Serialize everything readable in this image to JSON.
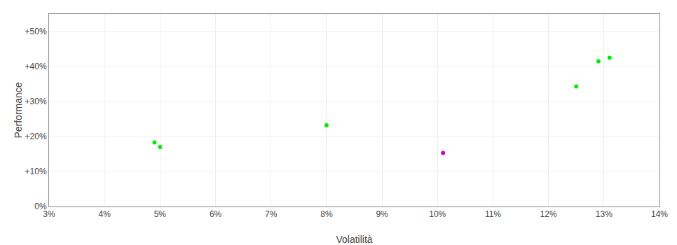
{
  "chart_data": {
    "type": "scatter",
    "xlabel": "Volatilità",
    "ylabel": "Performance",
    "xlim": [
      0.03,
      0.14
    ],
    "ylim": [
      0.0,
      0.55
    ],
    "xticks": [
      {
        "value": 0.03,
        "label": "3%"
      },
      {
        "value": 0.04,
        "label": "4%"
      },
      {
        "value": 0.05,
        "label": "5%"
      },
      {
        "value": 0.06,
        "label": "6%"
      },
      {
        "value": 0.07,
        "label": "7%"
      },
      {
        "value": 0.08,
        "label": "8%"
      },
      {
        "value": 0.09,
        "label": "9%"
      },
      {
        "value": 0.1,
        "label": "10%"
      },
      {
        "value": 0.11,
        "label": "11%"
      },
      {
        "value": 0.12,
        "label": "12%"
      },
      {
        "value": 0.13,
        "label": "13%"
      },
      {
        "value": 0.14,
        "label": "14%"
      }
    ],
    "yticks": [
      {
        "value": 0.0,
        "label": "0%"
      },
      {
        "value": 0.1,
        "label": "+10%"
      },
      {
        "value": 0.2,
        "label": "+20%"
      },
      {
        "value": 0.3,
        "label": "+30%"
      },
      {
        "value": 0.4,
        "label": "+40%"
      },
      {
        "value": 0.5,
        "label": "+50%"
      }
    ],
    "grid": true,
    "series": [
      {
        "color": "#00ee00",
        "marker": "circle",
        "x": [
          0.049,
          0.05,
          0.08,
          0.125,
          0.129,
          0.131
        ],
        "values": [
          0.183,
          0.17,
          0.232,
          0.343,
          0.415,
          0.425
        ]
      },
      {
        "color": "#cc00cc",
        "marker": "circle",
        "x": [
          0.101
        ],
        "values": [
          0.153
        ]
      }
    ]
  }
}
